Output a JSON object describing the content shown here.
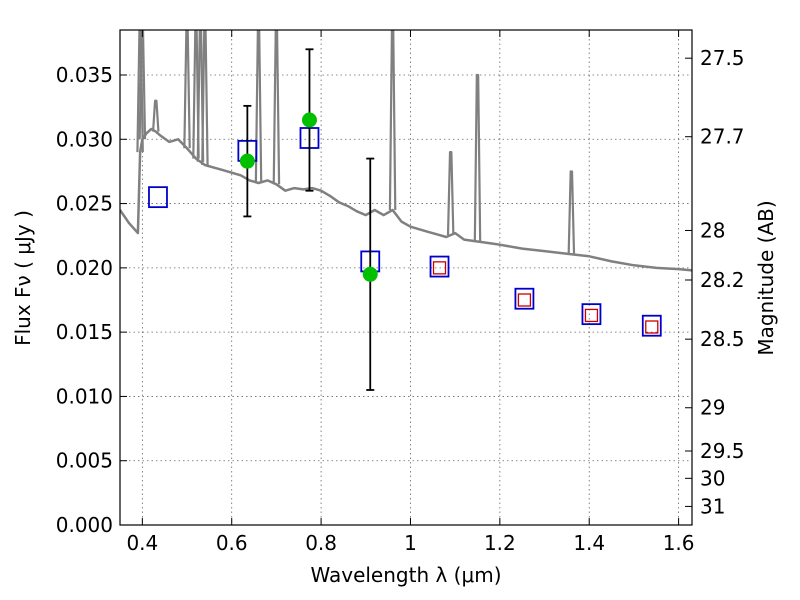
{
  "chart_data": {
    "type": "scatter",
    "title": "",
    "xlabel": "Wavelength  λ (μm)",
    "ylabel": "Flux  Fν  ( μJy )",
    "y2label": "Magnitude (AB)",
    "xlim": [
      0.35,
      1.63
    ],
    "ylim": [
      0.0,
      0.0385
    ],
    "grid": true,
    "x_ticks": [
      0.4,
      0.6,
      0.8,
      1.0,
      1.2,
      1.4,
      1.6
    ],
    "x_tick_labels": [
      "0.4",
      "0.6",
      "0.8",
      "1",
      "1.2",
      "1.4",
      "1.6"
    ],
    "y_ticks": [
      0.0,
      0.005,
      0.01,
      0.015,
      0.02,
      0.025,
      0.03,
      0.035
    ],
    "y_tick_labels": [
      "0.000",
      "0.005",
      "0.010",
      "0.015",
      "0.020",
      "0.025",
      "0.030",
      "0.035"
    ],
    "y2_ticks": [
      27.5,
      27.7,
      28,
      28.2,
      28.5,
      29,
      29.5,
      30,
      31
    ],
    "y2_tick_labels": [
      "27.5",
      "27.7",
      "28",
      "28.2",
      "28.5",
      "29",
      "29.5",
      "30",
      "31"
    ],
    "colors": {
      "template": "#808080",
      "observed": "#00c000",
      "model_box": "#0000cc",
      "filter_box": "#cc0000",
      "errorbar": "#000000"
    },
    "series": [
      {
        "kind": "template_spectrum",
        "x": [
          0.35,
          0.37,
          0.39,
          0.395,
          0.4,
          0.41,
          0.42,
          0.43,
          0.44,
          0.46,
          0.48,
          0.5,
          0.52,
          0.54,
          0.56,
          0.58,
          0.6,
          0.62,
          0.64,
          0.66,
          0.68,
          0.7,
          0.72,
          0.74,
          0.76,
          0.78,
          0.8,
          0.82,
          0.84,
          0.86,
          0.88,
          0.9,
          0.92,
          0.94,
          0.96,
          0.98,
          1.0,
          1.02,
          1.04,
          1.06,
          1.08,
          1.1,
          1.12,
          1.14,
          1.16,
          1.18,
          1.2,
          1.25,
          1.3,
          1.35,
          1.4,
          1.45,
          1.5,
          1.55,
          1.6,
          1.63
        ],
        "y": [
          0.0245,
          0.0235,
          0.0227,
          0.029,
          0.03,
          0.0305,
          0.0308,
          0.0306,
          0.0303,
          0.0298,
          0.03,
          0.0293,
          0.0285,
          0.028,
          0.0278,
          0.0276,
          0.0274,
          0.0272,
          0.0268,
          0.0266,
          0.0268,
          0.0265,
          0.026,
          0.0262,
          0.0261,
          0.0262,
          0.026,
          0.0256,
          0.0251,
          0.0248,
          0.0244,
          0.0241,
          0.0245,
          0.0241,
          0.0245,
          0.0236,
          0.0232,
          0.023,
          0.0228,
          0.0226,
          0.0224,
          0.0227,
          0.0222,
          0.0221,
          0.022,
          0.0219,
          0.0218,
          0.0215,
          0.0213,
          0.0211,
          0.0209,
          0.0205,
          0.0202,
          0.02,
          0.0199,
          0.0198
        ]
      },
      {
        "kind": "template_lines",
        "x": [
          0.395,
          0.4,
          0.43,
          0.5,
          0.52,
          0.53,
          0.54,
          0.66,
          0.7,
          0.96,
          1.09,
          1.15,
          1.36
        ],
        "y": [
          0.0385,
          0.0385,
          0.033,
          0.0385,
          0.0385,
          0.0385,
          0.0385,
          0.0385,
          0.0385,
          0.0385,
          0.029,
          0.035,
          0.0275
        ]
      },
      {
        "kind": "observed",
        "x": [
          0.635,
          0.774,
          0.91
        ],
        "y": [
          0.0283,
          0.0315,
          0.0195
        ],
        "yerr": [
          0.0043,
          0.0055,
          0.009
        ]
      },
      {
        "kind": "model_boxes",
        "x": [
          0.435,
          0.635,
          0.774,
          0.91,
          1.065,
          1.255,
          1.405,
          1.54
        ],
        "y": [
          0.0255,
          0.0291,
          0.0301,
          0.0205,
          0.0201,
          0.0176,
          0.0164,
          0.0155
        ]
      },
      {
        "kind": "filter_boxes",
        "x": [
          1.065,
          1.255,
          1.405,
          1.54
        ],
        "y": [
          0.02,
          0.0175,
          0.0163,
          0.0154
        ]
      }
    ]
  }
}
